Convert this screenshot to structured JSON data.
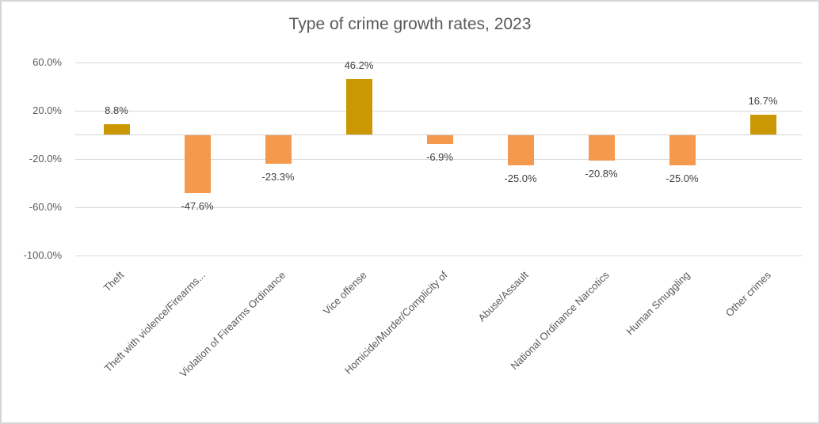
{
  "chart_data": {
    "type": "bar",
    "title": "Type of crime growth rates, 2023",
    "categories": [
      "Theft",
      "Theft with violence/Firearms...",
      "Violation of Firearms Ordinance",
      "Vice offense",
      "Homicide/Murder/Complicity of",
      "Abuse/Assault",
      "National Ordinance Narcotics",
      "Human Smuggling",
      "Other crimes"
    ],
    "values": [
      8.8,
      -47.6,
      -23.3,
      46.2,
      -6.9,
      -25.0,
      -20.8,
      -25.0,
      16.7
    ],
    "data_labels": [
      "8.8%",
      "-47.6%",
      "-23.3%",
      "46.2%",
      "-6.9%",
      "-25.0%",
      "-20.8%",
      "-25.0%",
      "16.7%"
    ],
    "xlabel": "",
    "ylabel": "",
    "grid": true,
    "legend": false,
    "y_axis": {
      "ylim": [
        -100,
        60
      ],
      "ticks": [
        {
          "value": 60,
          "label": "60.0%"
        },
        {
          "value": 20,
          "label": "20.0%"
        },
        {
          "value": -20,
          "label": "-20.0%"
        },
        {
          "value": -60,
          "label": "-60.0%"
        },
        {
          "value": -100,
          "label": "-100.0%"
        }
      ]
    },
    "colors": {
      "positive_bar": "#CB9702",
      "negative_bar": "#F5994E",
      "gridline": "#D9D9D9",
      "axis_line": "#D3D3D3",
      "title_text": "#595959",
      "axis_text": "#595959",
      "data_label_text": "#404040",
      "chart_border": "#D6D6D6",
      "background": "#FFFFFF"
    }
  }
}
